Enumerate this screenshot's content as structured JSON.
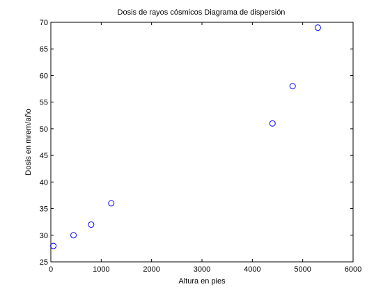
{
  "chart_data": {
    "type": "scatter",
    "title": "Dosis de rayos cósmicos Diagrama de dispersión",
    "xlabel": "Altura en pies",
    "ylabel": "Dosis en mrem/año",
    "xlim": [
      0,
      6000
    ],
    "ylim": [
      25,
      70
    ],
    "xticks": [
      0,
      1000,
      2000,
      3000,
      4000,
      5000,
      6000
    ],
    "yticks": [
      25,
      30,
      35,
      40,
      45,
      50,
      55,
      60,
      65,
      70
    ],
    "grid": false,
    "marker": "circle-open",
    "marker_color": "#0000ff",
    "points": [
      {
        "x": 50,
        "y": 28
      },
      {
        "x": 450,
        "y": 30
      },
      {
        "x": 800,
        "y": 32
      },
      {
        "x": 1200,
        "y": 36
      },
      {
        "x": 4400,
        "y": 51
      },
      {
        "x": 4800,
        "y": 58
      },
      {
        "x": 5300,
        "y": 69
      }
    ]
  }
}
